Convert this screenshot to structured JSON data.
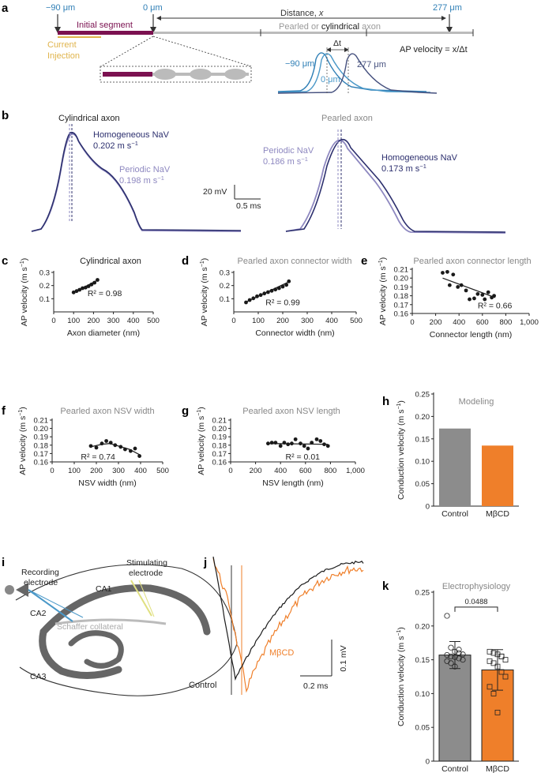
{
  "figure": {
    "panel_labels": [
      "a",
      "b",
      "c",
      "d",
      "e",
      "f",
      "g",
      "h",
      "i",
      "j",
      "k"
    ],
    "colors": {
      "navy": "#2c2f6e",
      "lavender": "#8e88c0",
      "maroon": "#7b1150",
      "gold": "#e0b44c",
      "gray_axon": "#bbbbbb",
      "blue1": "#2f7fb6",
      "blue2": "#4a98c8",
      "blue3": "#45507e",
      "orange": "#ef7f2a",
      "bar_gray": "#8c8c8c",
      "black": "#1a1a1a"
    }
  },
  "panel_a": {
    "pos_left": "−90 μm",
    "pos_zero": "0 μm",
    "pos_right": "277 μm",
    "distance_label": "Distance, ",
    "distance_var": "x",
    "initial_segment": "Initial segment",
    "axon_label_1": "Pearled or ",
    "axon_label_2": "cylindrical",
    "axon_label_3": " axon",
    "current_injection_1": "Current",
    "current_injection_2": "Injection",
    "trace_neg90": "−90 μm",
    "trace_0": "0 μm",
    "trace_277": "277 μm",
    "delta_t": "Δt",
    "velocity_formula": "AP velocity = x/Δt"
  },
  "panel_b": {
    "cyl_title": "Cylindrical axon",
    "pearled_title": "Pearled axon",
    "cyl_homog_1": "Homogeneous NaV",
    "cyl_homog_2": "0.202 m s",
    "cyl_periodic_1": "Periodic NaV",
    "cyl_periodic_2": "0.198 m s",
    "pearl_periodic_1": "Periodic NaV",
    "pearl_periodic_2": "0.186 m s",
    "pearl_homog_1": "Homogeneous NaV",
    "pearl_homog_2": "0.173 m s",
    "sup": "−1",
    "scale_mv": "20 mV",
    "scale_ms": "0.5 ms"
  },
  "panel_j": {
    "drug_label": "MβCD",
    "control_label": "Control",
    "scale_mv": "0.1 mV",
    "scale_ms": "0.2 ms"
  },
  "panel_i": {
    "recording_1": "Recording",
    "recording_2": "electrode",
    "stimulating_1": "Stimulating",
    "stimulating_2": "electrode",
    "ca1": "CA1",
    "ca2": "CA2",
    "ca3": "CA3",
    "schaffer": "Schaffer collateral"
  },
  "chart_data": [
    {
      "id": "c",
      "type": "scatter",
      "title": "Cylindrical axon",
      "xlabel": "Axon diameter (nm)",
      "ylabel": "AP velocity (m s−1)",
      "xlim": [
        0,
        500
      ],
      "ylim": [
        0,
        0.3
      ],
      "xticks": [
        0,
        100,
        200,
        300,
        400,
        500
      ],
      "yticks": [
        0.1,
        0.2,
        0.3
      ],
      "xtick_labels": [
        "0",
        "100",
        "200",
        "300",
        "400",
        "500"
      ],
      "ytick_labels": [
        "0.1",
        "0.2",
        "0.3"
      ],
      "x": [
        100,
        115,
        130,
        145,
        160,
        175,
        190,
        205,
        220
      ],
      "y": [
        0.148,
        0.158,
        0.168,
        0.18,
        0.185,
        0.195,
        0.208,
        0.222,
        0.243
      ],
      "fit": [
        [
          100,
          0.146
        ],
        [
          225,
          0.245
        ]
      ],
      "annotation": "R² = 0.98"
    },
    {
      "id": "d",
      "type": "scatter",
      "title": "Pearled axon connector width",
      "xlabel": "Connector width (nm)",
      "ylabel": "AP velocity (m s−1)",
      "xlim": [
        0,
        500
      ],
      "ylim": [
        0,
        0.3
      ],
      "xticks": [
        0,
        100,
        200,
        300,
        400,
        500
      ],
      "yticks": [
        0.1,
        0.2,
        0.3
      ],
      "xtick_labels": [
        "0",
        "100",
        "200",
        "300",
        "400",
        "500"
      ],
      "ytick_labels": [
        "0.1",
        "0.2",
        "0.3"
      ],
      "x": [
        50,
        65,
        80,
        95,
        110,
        125,
        140,
        155,
        170,
        185,
        200,
        215,
        225
      ],
      "y": [
        0.072,
        0.09,
        0.103,
        0.118,
        0.128,
        0.14,
        0.15,
        0.16,
        0.17,
        0.18,
        0.192,
        0.205,
        0.232
      ],
      "fit": [
        [
          50,
          0.075
        ],
        [
          225,
          0.228
        ]
      ],
      "annotation": "R² = 0.99"
    },
    {
      "id": "e",
      "type": "scatter",
      "title": "Pearled axon connector length",
      "xlabel": "Connector length (nm)",
      "ylabel": "AP velocity (m s−1)",
      "xlim": [
        0,
        1000
      ],
      "ylim": [
        0.16,
        0.21
      ],
      "xticks": [
        0,
        200,
        400,
        600,
        800,
        1000
      ],
      "yticks": [
        0.16,
        0.17,
        0.18,
        0.19,
        0.2,
        0.21
      ],
      "xtick_labels": [
        "0",
        "200",
        "400",
        "600",
        "800",
        "1,000"
      ],
      "ytick_labels": [
        "0.16",
        "0.17",
        "0.18",
        "0.19",
        "0.20",
        "0.21"
      ],
      "x": [
        260,
        300,
        320,
        350,
        390,
        420,
        460,
        490,
        530,
        560,
        600,
        620,
        650,
        680,
        700
      ],
      "y": [
        0.206,
        0.207,
        0.192,
        0.204,
        0.19,
        0.192,
        0.186,
        0.176,
        0.177,
        0.182,
        0.181,
        0.176,
        0.184,
        0.178,
        0.18
      ],
      "fit": [
        [
          260,
          0.2
        ],
        [
          710,
          0.178
        ]
      ],
      "annotation": "R² = 0.66"
    },
    {
      "id": "f",
      "type": "scatter",
      "title": "Pearled axon NSV width",
      "xlabel": "NSV width (nm)",
      "ylabel": "AP velocity (m s−1)",
      "xlim": [
        0,
        500
      ],
      "ylim": [
        0.16,
        0.21
      ],
      "xticks": [
        0,
        100,
        200,
        300,
        400,
        500
      ],
      "yticks": [
        0.16,
        0.17,
        0.18,
        0.19,
        0.2,
        0.21
      ],
      "xtick_labels": [
        "0",
        "100",
        "200",
        "300",
        "400",
        "500"
      ],
      "ytick_labels": [
        "0.16",
        "0.17",
        "0.18",
        "0.19",
        "0.20",
        "0.21"
      ],
      "x": [
        175,
        200,
        225,
        245,
        265,
        285,
        310,
        330,
        355,
        375,
        395
      ],
      "y": [
        0.179,
        0.177,
        0.182,
        0.185,
        0.183,
        0.18,
        0.178,
        0.175,
        0.173,
        0.176,
        0.167
      ],
      "fit": [
        [
          175,
          0.178
        ],
        [
          225,
          0.181
        ],
        [
          260,
          0.182
        ],
        [
          300,
          0.179
        ],
        [
          350,
          0.175
        ],
        [
          400,
          0.168
        ]
      ],
      "annotation": "R² = 0.74"
    },
    {
      "id": "g",
      "type": "scatter",
      "title": "Pearled axon NSV length",
      "xlabel": "NSV length (nm)",
      "ylabel": "AP velocity (m s−1)",
      "xlim": [
        0,
        1000
      ],
      "ylim": [
        0.16,
        0.21
      ],
      "xticks": [
        0,
        200,
        400,
        600,
        800,
        1000
      ],
      "yticks": [
        0.16,
        0.17,
        0.18,
        0.19,
        0.2,
        0.21
      ],
      "xtick_labels": [
        "0",
        "200",
        "400",
        "600",
        "800",
        "1,000"
      ],
      "ytick_labels": [
        "0.16",
        "0.17",
        "0.18",
        "0.19",
        "0.20",
        "0.21"
      ],
      "x": [
        300,
        330,
        360,
        400,
        430,
        460,
        490,
        520,
        560,
        590,
        620,
        650,
        690,
        720,
        750,
        780
      ],
      "y": [
        0.182,
        0.183,
        0.183,
        0.179,
        0.183,
        0.181,
        0.182,
        0.187,
        0.182,
        0.179,
        0.176,
        0.183,
        0.187,
        0.185,
        0.181,
        0.179
      ],
      "fit": [
        [
          300,
          0.182
        ],
        [
          780,
          0.181
        ]
      ],
      "annotation": "R² = 0.01"
    },
    {
      "id": "h",
      "type": "bar",
      "title": "Modeling",
      "ylabel": "Conduction velocity (m s−1)",
      "categories": [
        "Control",
        "MβCD"
      ],
      "values": [
        0.173,
        0.135
      ],
      "ylim": [
        0,
        0.25
      ],
      "yticks": [
        0,
        0.05,
        0.1,
        0.15,
        0.2,
        0.25
      ],
      "ytick_labels": [
        "0",
        "0.05",
        "0.10",
        "0.15",
        "0.20",
        "0.25"
      ],
      "colors": [
        "#8c8c8c",
        "#ef7f2a"
      ]
    },
    {
      "id": "k",
      "type": "bar",
      "title": "Electrophysiology",
      "ylabel": "Conduction velocity (m s−1)",
      "categories": [
        "Control",
        "MβCD"
      ],
      "values": [
        0.157,
        0.135
      ],
      "errors": [
        0.02,
        0.03
      ],
      "ylim": [
        0,
        0.25
      ],
      "yticks": [
        0,
        0.05,
        0.1,
        0.15,
        0.2,
        0.25
      ],
      "ytick_labels": [
        "0",
        "0.05",
        "0.10",
        "0.15",
        "0.20",
        "0.25"
      ],
      "colors": [
        "#8c8c8c",
        "#ef7f2a"
      ],
      "p_value": "0.0488",
      "points": [
        [
          0.215,
          0.168,
          0.162,
          0.16,
          0.158,
          0.157,
          0.155,
          0.154,
          0.152,
          0.15,
          0.148,
          0.145,
          0.14,
          0.165
        ],
        [
          0.162,
          0.16,
          0.158,
          0.155,
          0.15,
          0.148,
          0.145,
          0.14,
          0.132,
          0.125,
          0.11,
          0.1,
          0.072,
          0.155
        ]
      ]
    }
  ]
}
